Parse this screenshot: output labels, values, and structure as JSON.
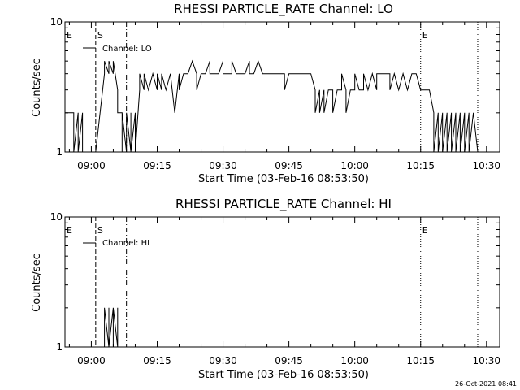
{
  "chart_data": [
    {
      "type": "line",
      "title": "RHESSI PARTICLE_RATE Channel: LO",
      "xlabel": "Start Time (03-Feb-16 08:53:50)",
      "ylabel": "Counts/sec",
      "yscale": "log",
      "ylim": [
        1,
        10
      ],
      "y_ticks": [
        "1",
        "10"
      ],
      "xlim": [
        "08:54",
        "10:33"
      ],
      "x_ticks": [
        "09:00",
        "09:15",
        "09:30",
        "09:45",
        "10:00",
        "10:15",
        "10:30"
      ],
      "legend": {
        "entries": [
          "Channel: LO"
        ],
        "position": "top-left"
      },
      "markers": [
        {
          "label": "E",
          "time": "08:54",
          "style": "none"
        },
        {
          "label": "S",
          "time": "09:01",
          "style": "dashed"
        },
        {
          "label": "",
          "time": "09:08",
          "style": "dash-dot"
        },
        {
          "label": "E",
          "time": "10:15",
          "style": "dotted"
        },
        {
          "label": "",
          "time": "10:28",
          "style": "dotted"
        }
      ],
      "series": [
        {
          "x": [
            "08:54",
            "08:56",
            "08:56",
            "08:57",
            "08:57",
            "08:58",
            "08:58",
            "08:59",
            "08:59",
            "09:00",
            "09:01",
            "09:02",
            "09:03",
            "09:03",
            "09:04",
            "09:04",
            "09:05",
            "09:05",
            "09:06",
            "09:06",
            "09:07",
            "09:07",
            "09:07",
            "09:08",
            "09:08",
            "09:09",
            "09:09",
            "09:09",
            "09:10",
            "09:10",
            "09:11",
            "09:11",
            "09:12",
            "09:12",
            "09:13",
            "09:14",
            "09:15",
            "09:15",
            "09:16",
            "09:16",
            "09:17",
            "09:18",
            "09:19",
            "09:20",
            "09:20",
            "09:21",
            "09:22",
            "09:23",
            "09:24",
            "09:24",
            "09:25",
            "09:26",
            "09:27",
            "09:27",
            "09:28",
            "09:29",
            "09:30",
            "09:30",
            "09:31",
            "09:32",
            "09:32",
            "09:33",
            "09:34",
            "09:35",
            "09:36",
            "09:36",
            "09:37",
            "09:38",
            "09:39",
            "09:40",
            "09:40",
            "09:41",
            "09:42",
            "09:43",
            "09:44",
            "09:44",
            "09:45",
            "09:46",
            "09:47",
            "09:48",
            "09:49",
            "09:50",
            "09:51",
            "09:51",
            "09:52",
            "09:52",
            "09:53",
            "09:53",
            "09:54",
            "09:55",
            "09:55",
            "09:56",
            "09:57",
            "09:57",
            "09:58",
            "09:58",
            "09:59",
            "10:00",
            "10:00",
            "10:01",
            "10:02",
            "10:02",
            "10:03",
            "10:04",
            "10:05",
            "10:05",
            "10:06",
            "10:07",
            "10:08",
            "10:08",
            "10:09",
            "10:10",
            "10:11",
            "10:12",
            "10:13",
            "10:14",
            "10:15",
            "10:16",
            "10:17",
            "10:18",
            "10:18",
            "10:19",
            "10:19",
            "10:20",
            "10:20",
            "10:21",
            "10:21",
            "10:22",
            "10:22",
            "10:23",
            "10:23",
            "10:24",
            "10:24",
            "10:25",
            "10:25",
            "10:26",
            "10:26",
            "10:27",
            "10:28"
          ],
          "y": [
            2,
            2,
            1,
            2,
            1,
            2,
            1,
            1,
            1,
            1,
            1,
            2,
            4,
            5,
            4,
            5,
            4,
            5,
            3,
            2,
            2,
            1,
            2,
            1,
            2,
            1,
            2,
            1,
            2,
            1,
            3,
            4,
            3,
            4,
            3,
            4,
            3,
            4,
            3,
            4,
            3,
            4,
            2,
            4,
            3,
            4,
            4,
            5,
            4,
            3,
            4,
            4,
            5,
            4,
            4,
            4,
            5,
            4,
            4,
            4,
            5,
            4,
            4,
            4,
            5,
            4,
            4,
            5,
            4,
            4,
            4,
            4,
            4,
            4,
            4,
            3,
            4,
            4,
            4,
            4,
            4,
            4,
            3,
            2,
            3,
            2,
            3,
            2,
            3,
            3,
            2,
            3,
            3,
            4,
            3,
            2,
            3,
            3,
            4,
            3,
            3,
            4,
            3,
            4,
            3,
            4,
            4,
            4,
            4,
            3,
            4,
            3,
            4,
            3,
            4,
            4,
            3,
            3,
            3,
            2,
            1,
            2,
            1,
            2,
            1,
            2,
            1,
            2,
            1,
            2,
            1,
            2,
            1,
            2,
            1,
            2,
            1,
            2,
            1
          ]
        }
      ]
    },
    {
      "type": "line",
      "title": "RHESSI PARTICLE_RATE Channel: HI",
      "xlabel": "Start Time (03-Feb-16 08:53:50)",
      "ylabel": "Counts/sec",
      "yscale": "log",
      "ylim": [
        1,
        10
      ],
      "y_ticks": [
        "1",
        "10"
      ],
      "xlim": [
        "08:54",
        "10:33"
      ],
      "x_ticks": [
        "09:00",
        "09:15",
        "09:30",
        "09:45",
        "10:00",
        "10:15",
        "10:30"
      ],
      "legend": {
        "entries": [
          "Channel: HI"
        ],
        "position": "top-left"
      },
      "markers": [
        {
          "label": "E",
          "time": "08:54",
          "style": "none"
        },
        {
          "label": "S",
          "time": "09:01",
          "style": "dashed"
        },
        {
          "label": "",
          "time": "09:08",
          "style": "dash-dot"
        },
        {
          "label": "E",
          "time": "10:15",
          "style": "dotted"
        },
        {
          "label": "",
          "time": "10:28",
          "style": "dotted"
        }
      ],
      "series": [
        {
          "x": [
            "09:03",
            "09:03",
            "09:04",
            "09:04",
            "09:04",
            "09:05",
            "09:05",
            "09:05",
            "09:06",
            "09:06",
            "09:06",
            "09:06"
          ],
          "y": [
            1,
            2,
            1,
            2,
            1,
            2,
            1,
            2,
            1,
            2,
            1,
            1
          ]
        }
      ]
    }
  ],
  "footer": {
    "timestamp": "26-Oct-2021 08:41"
  }
}
